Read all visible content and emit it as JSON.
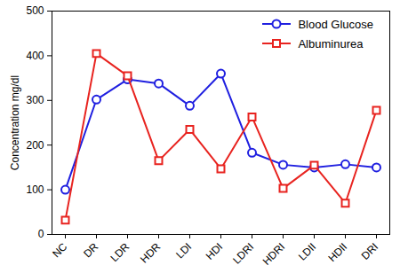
{
  "chart_data": {
    "type": "line",
    "ylabel": "Concentration mg/dl",
    "categories": [
      "NC",
      "DR",
      "LDR",
      "HDR",
      "LDI",
      "HDI",
      "LDRI",
      "HDRI",
      "LDII",
      "HDII",
      "DRI"
    ],
    "series": [
      {
        "name": "Blood Glucose",
        "color": "#1f1fe0",
        "marker": "circle",
        "line_style": "solid",
        "values": [
          100,
          302,
          347,
          338,
          288,
          360,
          183,
          156,
          150,
          157,
          150
        ]
      },
      {
        "name": "Albuminurea",
        "color": "#e8231f",
        "marker": "square",
        "line_style": "solid",
        "values": [
          32,
          405,
          355,
          165,
          235,
          147,
          263,
          103,
          155,
          70,
          278
        ]
      }
    ],
    "ylim": [
      0,
      500
    ],
    "yticks": [
      0,
      100,
      200,
      300,
      400,
      500
    ],
    "grid": false,
    "legend": "top-right"
  }
}
